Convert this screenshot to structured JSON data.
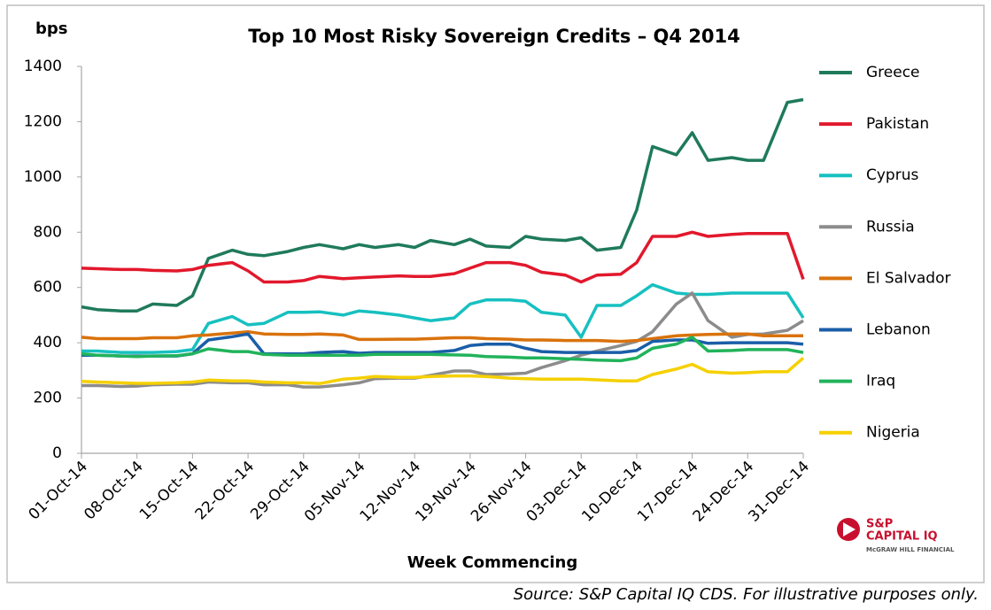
{
  "chart_data": {
    "type": "line",
    "title": "Top 10 Most Risky Sovereign Credits – Q4 2014",
    "ylabel": "bps",
    "xlabel": "Week Commencing",
    "source": "Source: S&P Capital IQ CDS. For illustrative purposes only.",
    "logo": [
      "S&P",
      "CAPITAL IQ",
      "McGRAW HILL FINANCIAL"
    ],
    "legend": "right",
    "x": [
      "2014-10-01",
      "2014-10-03",
      "2014-10-06",
      "2014-10-08",
      "2014-10-10",
      "2014-10-13",
      "2014-10-15",
      "2014-10-17",
      "2014-10-20",
      "2014-10-22",
      "2014-10-24",
      "2014-10-27",
      "2014-10-29",
      "2014-10-31",
      "2014-11-03",
      "2014-11-05",
      "2014-11-07",
      "2014-11-10",
      "2014-11-12",
      "2014-11-14",
      "2014-11-17",
      "2014-11-19",
      "2014-11-21",
      "2014-11-24",
      "2014-11-26",
      "2014-11-28",
      "2014-12-01",
      "2014-12-03",
      "2014-12-05",
      "2014-12-08",
      "2014-12-10",
      "2014-12-12",
      "2014-12-15",
      "2014-12-17",
      "2014-12-19",
      "2014-12-22",
      "2014-12-24",
      "2014-12-26",
      "2014-12-29",
      "2014-12-31"
    ],
    "xlim": [
      "2014-10-01",
      "2014-12-31"
    ],
    "xticks": [
      {
        "value": "2014-10-01",
        "label": "01-Oct-14"
      },
      {
        "value": "2014-10-08",
        "label": "08-Oct-14"
      },
      {
        "value": "2014-10-15",
        "label": "15-Oct-14"
      },
      {
        "value": "2014-10-22",
        "label": "22-Oct-14"
      },
      {
        "value": "2014-10-29",
        "label": "29-Oct-14"
      },
      {
        "value": "2014-11-05",
        "label": "05-Nov-14"
      },
      {
        "value": "2014-11-12",
        "label": "12-Nov-14"
      },
      {
        "value": "2014-11-19",
        "label": "19-Nov-14"
      },
      {
        "value": "2014-11-26",
        "label": "26-Nov-14"
      },
      {
        "value": "2014-12-03",
        "label": "03-Dec-14"
      },
      {
        "value": "2014-12-10",
        "label": "10-Dec-14"
      },
      {
        "value": "2014-12-17",
        "label": "17-Dec-14"
      },
      {
        "value": "2014-12-24",
        "label": "24-Dec-14"
      },
      {
        "value": "2014-12-31",
        "label": "31-Dec-14"
      }
    ],
    "ylim": [
      0,
      1400
    ],
    "yticks": [
      0,
      200,
      400,
      600,
      800,
      1000,
      1200,
      1400
    ],
    "series": [
      {
        "name": "Greece",
        "color": "#1f7a5c",
        "values": [
          530,
          520,
          515,
          515,
          540,
          535,
          570,
          705,
          735,
          720,
          715,
          730,
          745,
          755,
          740,
          755,
          745,
          755,
          745,
          770,
          755,
          775,
          750,
          745,
          785,
          775,
          770,
          780,
          735,
          745,
          880,
          1110,
          1080,
          1160,
          1060,
          1070,
          1060,
          1060,
          1270,
          1280
        ]
      },
      {
        "name": "Pakistan",
        "color": "#e2182c",
        "values": [
          670,
          668,
          665,
          665,
          662,
          660,
          665,
          680,
          690,
          660,
          620,
          620,
          625,
          640,
          632,
          635,
          638,
          642,
          640,
          640,
          650,
          670,
          690,
          690,
          680,
          655,
          645,
          620,
          645,
          648,
          690,
          785,
          785,
          800,
          785,
          792,
          795,
          795,
          795,
          630
        ]
      },
      {
        "name": "Cyprus",
        "color": "#17c0c0",
        "values": [
          370,
          370,
          365,
          365,
          365,
          368,
          375,
          470,
          495,
          465,
          470,
          510,
          510,
          512,
          500,
          515,
          510,
          500,
          490,
          480,
          490,
          540,
          555,
          555,
          550,
          510,
          500,
          420,
          535,
          535,
          570,
          610,
          580,
          575,
          575,
          580,
          580,
          580,
          580,
          490
        ]
      },
      {
        "name": "Russia",
        "color": "#8c8c8c",
        "values": [
          245,
          245,
          242,
          243,
          248,
          250,
          250,
          258,
          255,
          255,
          248,
          248,
          240,
          240,
          248,
          255,
          270,
          272,
          272,
          282,
          298,
          298,
          285,
          287,
          290,
          310,
          335,
          355,
          370,
          390,
          405,
          440,
          540,
          580,
          480,
          420,
          430,
          432,
          445,
          480
        ]
      },
      {
        "name": "El Salvador",
        "color": "#d9720c",
        "values": [
          420,
          415,
          415,
          415,
          418,
          418,
          425,
          428,
          435,
          440,
          432,
          430,
          430,
          432,
          428,
          412,
          412,
          413,
          413,
          415,
          418,
          418,
          415,
          413,
          410,
          410,
          408,
          408,
          408,
          405,
          408,
          415,
          425,
          428,
          430,
          432,
          432,
          425,
          425,
          425
        ]
      },
      {
        "name": "Lebanon",
        "color": "#1a5ea8",
        "values": [
          355,
          355,
          352,
          352,
          352,
          352,
          360,
          410,
          422,
          432,
          360,
          360,
          360,
          365,
          368,
          362,
          365,
          365,
          365,
          365,
          372,
          390,
          395,
          395,
          380,
          368,
          365,
          365,
          365,
          365,
          372,
          405,
          410,
          410,
          398,
          400,
          400,
          400,
          400,
          395
        ]
      },
      {
        "name": "Iraq",
        "color": "#21b35b",
        "values": [
          360,
          355,
          352,
          350,
          352,
          353,
          360,
          378,
          368,
          368,
          358,
          355,
          355,
          355,
          355,
          355,
          358,
          358,
          358,
          358,
          356,
          355,
          350,
          348,
          345,
          345,
          342,
          340,
          337,
          335,
          345,
          380,
          395,
          420,
          370,
          372,
          375,
          375,
          375,
          365
        ]
      },
      {
        "name": "Nigeria",
        "color": "#f5d000",
        "values": [
          260,
          258,
          255,
          253,
          253,
          255,
          258,
          265,
          262,
          262,
          258,
          255,
          255,
          252,
          268,
          272,
          278,
          275,
          275,
          278,
          280,
          280,
          278,
          272,
          270,
          268,
          268,
          268,
          266,
          262,
          262,
          285,
          305,
          322,
          295,
          290,
          292,
          295,
          295,
          345
        ]
      }
    ]
  }
}
